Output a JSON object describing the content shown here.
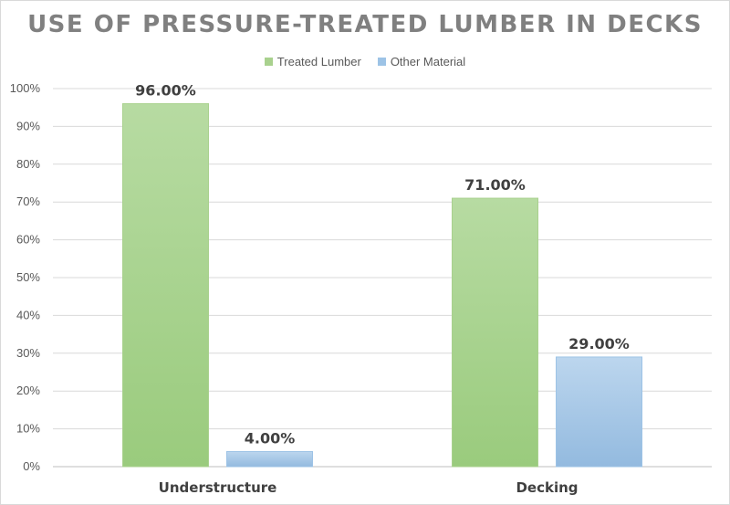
{
  "chart_data": {
    "type": "bar",
    "title": "USE OF PRESSURE-TREATED LUMBER IN DECKS",
    "categories": [
      "Understructure",
      "Decking"
    ],
    "series": [
      {
        "name": "Treated Lumber",
        "values": [
          96,
          71
        ],
        "labels": [
          "96.00%",
          "71.00%"
        ],
        "color": "#a9d18e"
      },
      {
        "name": "Other Material",
        "values": [
          4,
          29
        ],
        "labels": [
          "4.00%",
          "29.00%"
        ],
        "color": "#9dc3e6"
      }
    ],
    "yticks": [
      "0%",
      "10%",
      "20%",
      "30%",
      "40%",
      "50%",
      "60%",
      "70%",
      "80%",
      "90%",
      "100%"
    ],
    "ylim": [
      0,
      100
    ],
    "grid": true,
    "legend_position": "top"
  }
}
